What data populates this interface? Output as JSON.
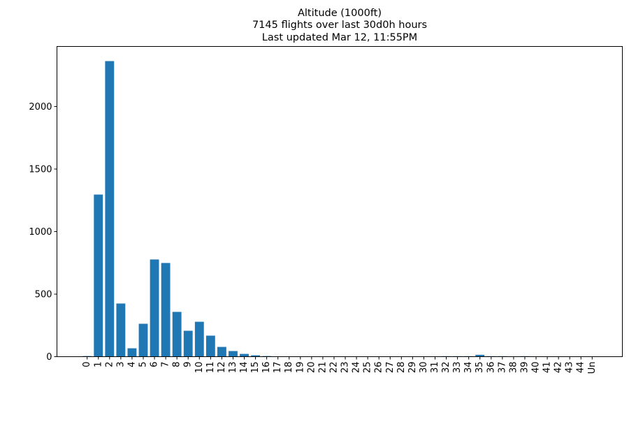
{
  "chart_data": {
    "type": "bar",
    "title": [
      "Altitude (1000ft)",
      "7145 flights over last 30d0h hours",
      "Last updated Mar 12, 11:55PM"
    ],
    "xlabel": "",
    "ylabel": "",
    "categories": [
      "0",
      "1",
      "2",
      "3",
      "4",
      "5",
      "6",
      "7",
      "8",
      "9",
      "10",
      "11",
      "12",
      "13",
      "14",
      "15",
      "16",
      "17",
      "18",
      "19",
      "20",
      "21",
      "22",
      "23",
      "24",
      "25",
      "26",
      "27",
      "28",
      "29",
      "30",
      "31",
      "32",
      "33",
      "34",
      "35",
      "36",
      "37",
      "38",
      "39",
      "40",
      "41",
      "42",
      "43",
      "44",
      "Un"
    ],
    "values": [
      5,
      1296,
      2363,
      425,
      67,
      263,
      777,
      749,
      358,
      207,
      279,
      168,
      78,
      45,
      22,
      11,
      5,
      0,
      0,
      0,
      0,
      0,
      0,
      0,
      0,
      0,
      0,
      0,
      0,
      0,
      0,
      0,
      4,
      4,
      4,
      15,
      4,
      4,
      0,
      4,
      0,
      0,
      0,
      0,
      0,
      0
    ],
    "ylim": [
      0,
      2480
    ],
    "yticks": [
      0,
      500,
      1000,
      1500,
      2000
    ],
    "grid": false,
    "bar_color": "#1f77b4"
  }
}
